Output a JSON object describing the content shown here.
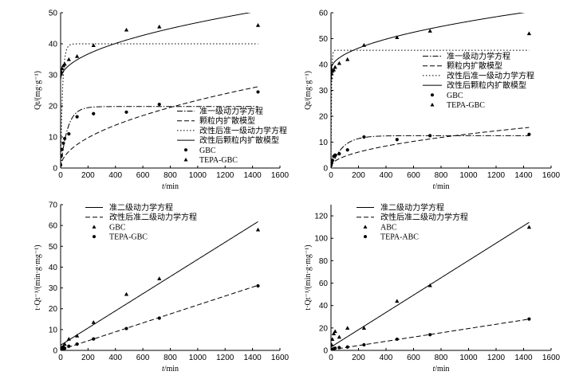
{
  "chart_data": [
    {
      "type": "line",
      "xlabel": "t/min",
      "ylabel": "Qt/(mg·g⁻¹)",
      "xlim": [
        0,
        1600
      ],
      "ylim": [
        0,
        50
      ],
      "xticks": [
        0,
        200,
        400,
        600,
        800,
        1000,
        1200,
        1400,
        1600
      ],
      "yticks": [
        0,
        10,
        20,
        30,
        40,
        50
      ],
      "legend_position": "lower-left",
      "curves": [
        {
          "name": "准一级动力学方程",
          "style": "dashdot",
          "model": "pfo",
          "qe": 19.8,
          "k": 0.02
        },
        {
          "name": "颗粒内扩散模型",
          "style": "dash",
          "model": "ipd",
          "kd": 0.69,
          "c": 0,
          "c0": 0
        },
        {
          "name": "改性后准一级动力学方程",
          "style": "dot",
          "model": "pfo",
          "qe": 40,
          "k": 0.07
        },
        {
          "name": "改性后颗粒内扩散模型",
          "style": "solid",
          "model": "ipd",
          "kd": 0.58,
          "c": 28.5,
          "c0": 28.5
        }
      ],
      "series": [
        {
          "name": "GBC",
          "marker": "circle",
          "x": [
            0,
            5,
            10,
            20,
            30,
            60,
            120,
            240,
            480,
            720,
            1440
          ],
          "y": [
            1,
            4,
            6,
            8,
            9.5,
            11,
            16.5,
            17.5,
            18,
            20.5,
            24.5
          ]
        },
        {
          "name": "TEPA-GBC",
          "marker": "triangle",
          "x": [
            0,
            5,
            10,
            20,
            30,
            60,
            120,
            240,
            480,
            720,
            1440
          ],
          "y": [
            30.5,
            31,
            32,
            33,
            33.5,
            35,
            36,
            39.5,
            44.5,
            45.5,
            46
          ]
        }
      ]
    },
    {
      "type": "line",
      "xlabel": "t/min",
      "ylabel": "Qt/(mg·g⁻¹)",
      "xlim": [
        0,
        1600
      ],
      "ylim": [
        0,
        60
      ],
      "xticks": [
        0,
        200,
        400,
        600,
        800,
        1000,
        1200,
        1400,
        1600
      ],
      "yticks": [
        0,
        10,
        20,
        30,
        40,
        50,
        60
      ],
      "legend_position": "center-right",
      "curves": [
        {
          "name": "准一级动力学方程",
          "style": "dashdot",
          "model": "pfo",
          "qe": 12.5,
          "k": 0.012
        },
        {
          "name": "颗粒内扩散模型",
          "style": "dash",
          "model": "ipd",
          "kd": 0.4,
          "c": 0.5,
          "c0": 0.5
        },
        {
          "name": "改性后准一级动力学方程",
          "style": "dot",
          "model": "pfo",
          "qe": 45.5,
          "k": 0.25
        },
        {
          "name": "改性后颗粒内扩散模型",
          "style": "solid",
          "model": "ipd",
          "kd": 0.59,
          "c": 38,
          "c0": 32
        }
      ],
      "series": [
        {
          "name": "GBC",
          "marker": "circle",
          "x": [
            0,
            5,
            10,
            20,
            30,
            60,
            120,
            240,
            480,
            720,
            1440
          ],
          "y": [
            1,
            2,
            3,
            4.5,
            5,
            5.5,
            7,
            12,
            11,
            12.5,
            13
          ]
        },
        {
          "name": "TEPA-GBC",
          "marker": "triangle",
          "x": [
            0,
            5,
            10,
            20,
            30,
            60,
            120,
            240,
            480,
            720,
            1440
          ],
          "y": [
            35,
            36.5,
            37.5,
            38,
            39,
            40.5,
            42,
            47.5,
            50.5,
            53,
            52
          ]
        }
      ]
    },
    {
      "type": "line",
      "xlabel": "t/min",
      "ylabel": "t·Qt⁻¹/(min·g·mg⁻¹)",
      "xlim": [
        0,
        1600
      ],
      "ylim": [
        0,
        70
      ],
      "xticks": [
        0,
        200,
        400,
        600,
        800,
        1000,
        1200,
        1400,
        1600
      ],
      "yticks": [
        0,
        10,
        20,
        30,
        40,
        50,
        60,
        70
      ],
      "legend_position": "top-left",
      "curves": [
        {
          "name": "准二级动力学方程",
          "style": "solid",
          "model": "linear",
          "m": 0.0412,
          "b": 2.5
        },
        {
          "name": "改性后准二级动力学方程",
          "style": "dash",
          "model": "linear",
          "m": 0.0215,
          "b": 0.3
        }
      ],
      "series": [
        {
          "name": "GBC",
          "marker": "triangle",
          "x": [
            5,
            10,
            20,
            30,
            60,
            120,
            240,
            480,
            720,
            1440
          ],
          "y": [
            1,
            1.5,
            2,
            3,
            5.5,
            7,
            13.5,
            27,
            34.5,
            58
          ]
        },
        {
          "name": "TEPA-GBC",
          "marker": "circle",
          "x": [
            5,
            10,
            20,
            30,
            60,
            120,
            240,
            480,
            720,
            1440
          ],
          "y": [
            0.2,
            0.3,
            0.6,
            1,
            2,
            3,
            5.5,
            10.5,
            15.5,
            31
          ]
        }
      ]
    },
    {
      "type": "line",
      "xlabel": "t/min",
      "ylabel": "t·Qt⁻¹/(min·g·mg⁻¹)",
      "xlim": [
        0,
        1600
      ],
      "ylim": [
        0,
        130
      ],
      "xticks": [
        0,
        200,
        400,
        600,
        800,
        1000,
        1200,
        1400,
        1600
      ],
      "yticks": [
        0,
        20,
        40,
        60,
        80,
        100,
        120
      ],
      "legend_position": "top-left",
      "curves": [
        {
          "name": "准二级动力学方程",
          "style": "solid",
          "model": "linear",
          "m": 0.0772,
          "b": 3
        },
        {
          "name": "改性后准二级动力学方程",
          "style": "dash",
          "model": "linear",
          "m": 0.019,
          "b": 0.5
        }
      ],
      "series": [
        {
          "name": "ABC",
          "marker": "triangle",
          "x": [
            5,
            10,
            20,
            30,
            60,
            120,
            240,
            480,
            720,
            1440
          ],
          "y": [
            5,
            10,
            15,
            17,
            12,
            20,
            20,
            44,
            58,
            110
          ]
        },
        {
          "name": "TEPA-ABC",
          "marker": "circle",
          "x": [
            5,
            10,
            20,
            30,
            60,
            120,
            240,
            480,
            720,
            1440
          ],
          "y": [
            0.5,
            1,
            1.5,
            2,
            2.5,
            3,
            5,
            10,
            14,
            28
          ]
        }
      ]
    }
  ]
}
